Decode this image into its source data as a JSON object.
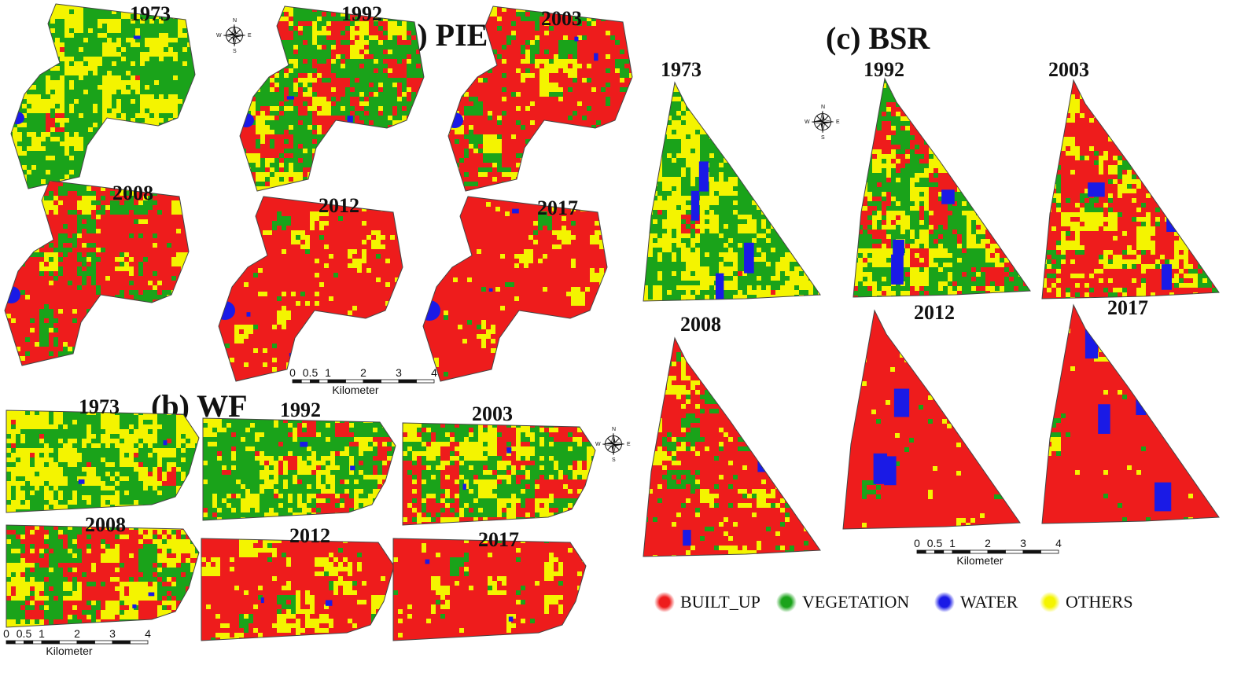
{
  "colors": {
    "built_up": "#ee1c1c",
    "vegetation": "#1aa31a",
    "water": "#1a1ae6",
    "others": "#f4f400"
  },
  "panels": {
    "a": {
      "title": "(a) PIE",
      "years": [
        "1973",
        "1992",
        "2003",
        "2008",
        "2012",
        "2017"
      ]
    },
    "b": {
      "title": "(b) WF",
      "years": [
        "1973",
        "1992",
        "2003",
        "2008",
        "2012",
        "2017"
      ]
    },
    "c": {
      "title": "(c) BSR",
      "years": [
        "1973",
        "1992",
        "2003",
        "2008",
        "2012",
        "2017"
      ]
    }
  },
  "map_share": {
    "pie": [
      {
        "built_up": 0.01,
        "vegetation": 0.6,
        "water": 0.02,
        "others": 0.37
      },
      {
        "built_up": 0.35,
        "vegetation": 0.45,
        "water": 0.02,
        "others": 0.18
      },
      {
        "built_up": 0.65,
        "vegetation": 0.2,
        "water": 0.02,
        "others": 0.13
      },
      {
        "built_up": 0.7,
        "vegetation": 0.2,
        "water": 0.02,
        "others": 0.08
      },
      {
        "built_up": 0.82,
        "vegetation": 0.03,
        "water": 0.03,
        "others": 0.12
      },
      {
        "built_up": 0.85,
        "vegetation": 0.02,
        "water": 0.03,
        "others": 0.1
      }
    ],
    "wf": [
      {
        "built_up": 0.02,
        "vegetation": 0.55,
        "water": 0.02,
        "others": 0.41
      },
      {
        "built_up": 0.1,
        "vegetation": 0.5,
        "water": 0.02,
        "others": 0.38
      },
      {
        "built_up": 0.22,
        "vegetation": 0.38,
        "water": 0.02,
        "others": 0.38
      },
      {
        "built_up": 0.48,
        "vegetation": 0.3,
        "water": 0.02,
        "others": 0.2
      },
      {
        "built_up": 0.8,
        "vegetation": 0.03,
        "water": 0.02,
        "others": 0.15
      },
      {
        "built_up": 0.84,
        "vegetation": 0.03,
        "water": 0.02,
        "others": 0.11
      }
    ],
    "bsr": [
      {
        "built_up": 0.01,
        "vegetation": 0.5,
        "water": 0.04,
        "others": 0.45
      },
      {
        "built_up": 0.3,
        "vegetation": 0.4,
        "water": 0.05,
        "others": 0.25
      },
      {
        "built_up": 0.55,
        "vegetation": 0.12,
        "water": 0.05,
        "others": 0.28
      },
      {
        "built_up": 0.7,
        "vegetation": 0.1,
        "water": 0.04,
        "others": 0.16
      },
      {
        "built_up": 0.88,
        "vegetation": 0.02,
        "water": 0.05,
        "others": 0.05
      },
      {
        "built_up": 0.9,
        "vegetation": 0.02,
        "water": 0.05,
        "others": 0.03
      }
    ]
  },
  "scale_bar": {
    "ticks": [
      "0",
      "0.5",
      "1",
      "2",
      "3",
      "4"
    ],
    "unit": "Kilometer"
  },
  "compass": {
    "n": "N",
    "s": "S",
    "e": "E",
    "w": "W"
  },
  "legend": [
    {
      "key": "built_up",
      "label": "BUILT_UP"
    },
    {
      "key": "vegetation",
      "label": "VEGETATION"
    },
    {
      "key": "water",
      "label": "WATER"
    },
    {
      "key": "others",
      "label": "OTHERS"
    }
  ]
}
